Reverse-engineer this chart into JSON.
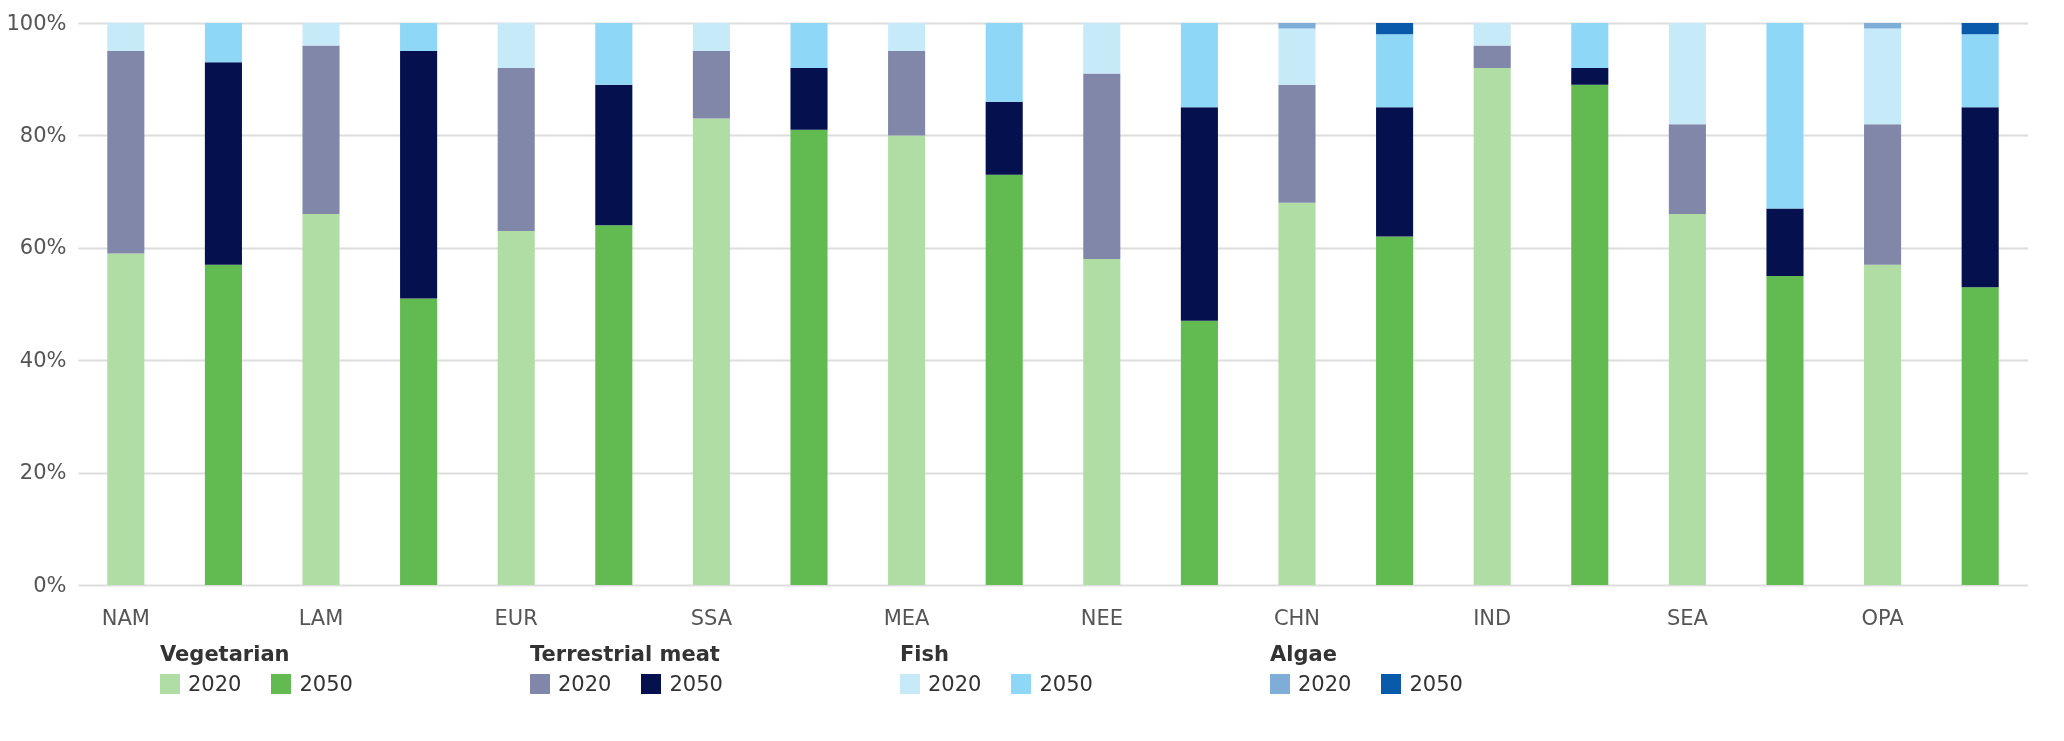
{
  "chart_data": {
    "type": "bar",
    "stacked": true,
    "categories": [
      "NAM",
      null,
      "LAM",
      null,
      "EUR",
      null,
      "SSA",
      null,
      "MEA",
      null,
      "NEE",
      null,
      "CHN",
      null,
      "IND",
      null,
      "SEA",
      null,
      "OPA",
      null
    ],
    "series": [
      {
        "name": "2020",
        "color": "#b0dda4",
        "values": [
          59,
          null,
          66,
          null,
          63,
          null,
          83,
          null,
          80,
          null,
          58,
          null,
          68,
          null,
          92,
          null,
          66,
          null,
          57,
          null
        ]
      },
      {
        "name": "2050",
        "color": "#62bb50",
        "values": [
          null,
          57,
          null,
          51,
          null,
          64,
          null,
          81,
          null,
          73,
          null,
          47,
          null,
          62,
          null,
          89,
          null,
          55,
          null,
          53
        ]
      },
      {
        "name": "2020",
        "color": "#8187a9",
        "values": [
          36,
          null,
          30,
          null,
          29,
          null,
          12,
          null,
          15,
          null,
          33,
          null,
          21,
          null,
          4,
          null,
          16,
          null,
          25,
          null
        ]
      },
      {
        "name": "2050",
        "color": "#05104f",
        "values": [
          null,
          36,
          null,
          44,
          null,
          25,
          null,
          11,
          null,
          13,
          null,
          38,
          null,
          23,
          null,
          3,
          null,
          12,
          null,
          32
        ]
      },
      {
        "name": "2020",
        "color": "#c7eaf9",
        "values": [
          5,
          null,
          4,
          null,
          8,
          null,
          5,
          null,
          5,
          null,
          9,
          null,
          10,
          null,
          4,
          null,
          18,
          null,
          17,
          null
        ]
      },
      {
        "name": "2050",
        "color": "#8fd7f7",
        "values": [
          null,
          7,
          null,
          5,
          null,
          11,
          null,
          8,
          null,
          14,
          null,
          15,
          null,
          13,
          null,
          8,
          null,
          33,
          null,
          13
        ]
      },
      {
        "name": "2020",
        "color": "#7eaed8",
        "values": [
          0,
          null,
          0,
          null,
          0,
          null,
          0,
          null,
          0,
          null,
          0,
          null,
          1,
          null,
          0,
          null,
          0,
          null,
          1,
          null
        ]
      },
      {
        "name": "2050",
        "color": "#0a5aab",
        "values": [
          null,
          0,
          null,
          0,
          null,
          0,
          null,
          0,
          null,
          0,
          null,
          0,
          null,
          2,
          null,
          0,
          null,
          0,
          null,
          2
        ]
      }
    ],
    "annotations": [
      "Vegetarian",
      "Terrestrial meat",
      "Fish",
      "Algae"
    ],
    "ylim": [
      0,
      100
    ],
    "yticks": [
      {
        "value": 0,
        "label": "0%"
      },
      {
        "value": 20,
        "label": "20%"
      },
      {
        "value": 40,
        "label": "40%"
      },
      {
        "value": 60,
        "label": "60%"
      },
      {
        "value": 80,
        "label": "80%"
      },
      {
        "value": 100,
        "label": "100%"
      }
    ],
    "grid": "y",
    "legend": "bottom left"
  }
}
